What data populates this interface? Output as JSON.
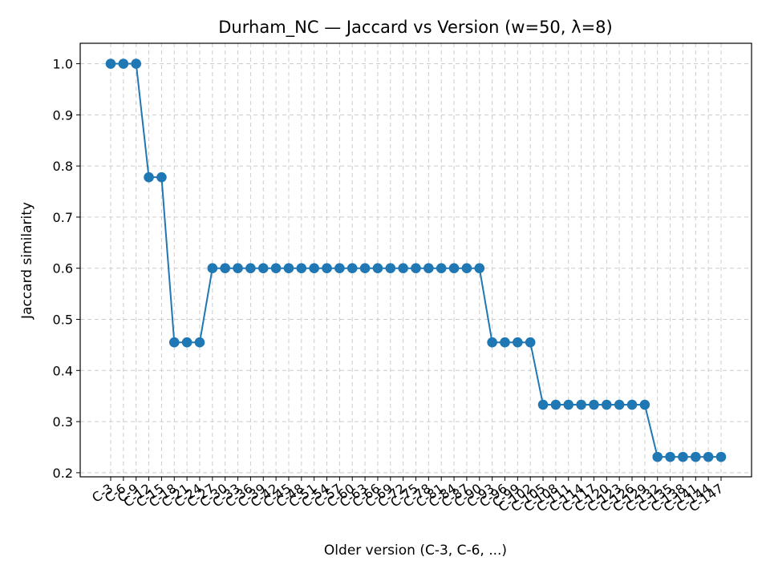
{
  "chart_data": {
    "type": "line",
    "title": "Durham_NC — Jaccard vs Version (w=50, λ=8)",
    "xlabel": "Older version (C-3, C-6, ...)",
    "ylabel": "Jaccard similarity",
    "ylim": [
      0.192,
      1.04
    ],
    "yticks": [
      "1.0",
      "0.9",
      "0.8",
      "0.7",
      "0.6",
      "0.5",
      "0.4",
      "0.3",
      "0.2"
    ],
    "grid": true,
    "color": "#1f77b4",
    "x": [
      "C-3",
      "C-6",
      "C-9",
      "C-12",
      "C-15",
      "C-18",
      "C-21",
      "C-24",
      "C-27",
      "C-30",
      "C-33",
      "C-36",
      "C-39",
      "C-42",
      "C-45",
      "C-48",
      "C-51",
      "C-54",
      "C-57",
      "C-60",
      "C-63",
      "C-66",
      "C-69",
      "C-72",
      "C-75",
      "C-78",
      "C-81",
      "C-84",
      "C-87",
      "C-90",
      "C-93",
      "C-96",
      "C-99",
      "C-102",
      "C-105",
      "C-108",
      "C-111",
      "C-114",
      "C-117",
      "C-120",
      "C-123",
      "C-126",
      "C-129",
      "C-132",
      "C-135",
      "C-138",
      "C-141",
      "C-144",
      "C-147"
    ],
    "series": [
      {
        "values": [
          1.0,
          1.0,
          1.0,
          0.778,
          0.778,
          0.455,
          0.455,
          0.455,
          0.6,
          0.6,
          0.6,
          0.6,
          0.6,
          0.6,
          0.6,
          0.6,
          0.6,
          0.6,
          0.6,
          0.6,
          0.6,
          0.6,
          0.6,
          0.6,
          0.6,
          0.6,
          0.6,
          0.6,
          0.6,
          0.6,
          0.455,
          0.455,
          0.455,
          0.455,
          0.333,
          0.333,
          0.333,
          0.333,
          0.333,
          0.333,
          0.333,
          0.333,
          0.333,
          0.231,
          0.231,
          0.231,
          0.231,
          0.231,
          0.231
        ]
      }
    ]
  }
}
